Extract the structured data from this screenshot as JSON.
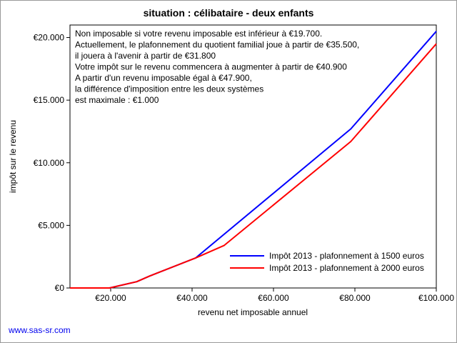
{
  "page": {
    "footer_link": "www.sas-sr.com"
  },
  "chart_data": {
    "type": "line",
    "title": "situation : célibataire - deux enfants",
    "xlabel": "revenu net imposable annuel",
    "ylabel": "impôt sur le revenu",
    "xlim": [
      10000,
      100000
    ],
    "ylim": [
      0,
      21000
    ],
    "xticks": [
      20000,
      40000,
      60000,
      80000,
      100000
    ],
    "xtick_labels": [
      "€20.000",
      "€40.000",
      "€60.000",
      "€80.000",
      "€100.000"
    ],
    "yticks": [
      0,
      5000,
      10000,
      15000,
      20000
    ],
    "ytick_labels": [
      "€0",
      "€5.000",
      "€10.000",
      "€15.000",
      "€20.000"
    ],
    "annotation": [
      "Non imposable si votre revenu imposable est inférieur à €19.700.",
      "Actuellement, le plafonnement du quotient familial joue à partir de €35.500,",
      "il jouera à l'avenir à partir de €31.800",
      "Votre impôt sur le revenu commencera à augmenter à partir de €40.900",
      "A partir d'un revenu imposable égal à €47.900,",
      "la différence d'imposition entre les deux systèmes",
      "est maximale : €1.000"
    ],
    "series": [
      {
        "name": "Impôt 2013 - plafonnement à 1500 euros",
        "color": "#0000ff",
        "x": [
          10000,
          19700,
          26400,
          29500,
          40900,
          79000,
          100000
        ],
        "y": [
          0,
          0,
          500,
          950,
          2400,
          12700,
          20500
        ]
      },
      {
        "name": "Impôt 2013 - plafonnement à 2000 euros",
        "color": "#ff0000",
        "x": [
          10000,
          19700,
          26400,
          29500,
          40900,
          47900,
          79000,
          100000
        ],
        "y": [
          0,
          0,
          500,
          950,
          2400,
          3400,
          11700,
          19500
        ]
      }
    ],
    "legend_position": "bottom-right",
    "grid": false
  }
}
